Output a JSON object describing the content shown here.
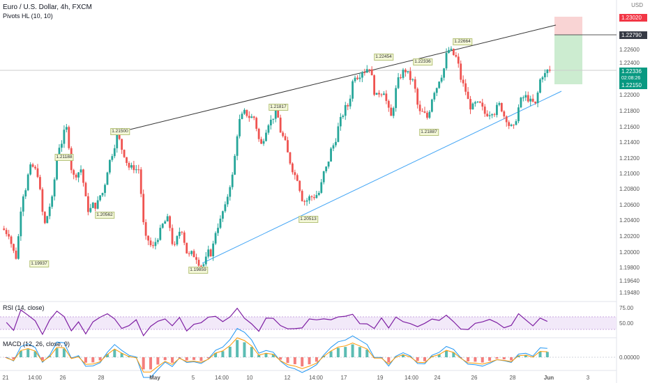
{
  "header": {
    "symbol_title": "Euro / U.S. Dollar, 4h, FXCM",
    "indicator_title": "Pivots HL (10, 10)"
  },
  "axis": {
    "currency": "USD",
    "price_ticks": [
      "1.22600",
      "1.22400",
      "1.22000",
      "1.21800",
      "1.21600",
      "1.21400",
      "1.21200",
      "1.21000",
      "1.20800",
      "1.20600",
      "1.20400",
      "1.20200",
      "1.20000",
      "1.19800",
      "1.19640",
      "1.19480"
    ],
    "time_ticks": [
      "21",
      "14:00",
      "26",
      "28",
      "May",
      "5",
      "14:00",
      "10",
      "12",
      "14:00",
      "17",
      "19",
      "14:00",
      "24",
      "26",
      "28",
      "Jun",
      "3"
    ]
  },
  "badges": {
    "stop_loss": "1.23020",
    "take_profit_line": "1.22790",
    "current_price": "1.22336",
    "countdown": "02:08:26",
    "entry": "1.22150"
  },
  "pivots": [
    "1.21188",
    "1.21500",
    "1.19937",
    "1.20562",
    "1.21817",
    "1.19859",
    "1.20513",
    "1.22454",
    "1.22336",
    "1.21887",
    "1.22664"
  ],
  "rsi": {
    "title": "RSI (14, close)",
    "levels": [
      "75.00",
      "50.00"
    ]
  },
  "macd": {
    "title": "MACD (12, 26, close, 9)",
    "value": "0.00000"
  },
  "colors": {
    "up": "#26a69a",
    "down": "#ef5350",
    "trend_upper": "#333333",
    "trend_lower": "#42a5f5",
    "rsi_line": "#7e1fa3",
    "macd_line": "#2196f3",
    "signal_line": "#ff9800"
  },
  "chart_data": {
    "type": "candlestick",
    "series": [
      {
        "name": "EURUSD",
        "close_path": [
          1.203,
          1.2,
          1.208,
          1.211,
          1.2105,
          1.204,
          1.207,
          1.214,
          1.216,
          1.21,
          1.211,
          1.206,
          1.2065,
          1.208,
          1.212,
          1.215,
          1.213,
          1.211,
          1.211,
          1.202,
          1.201,
          1.203,
          1.2045,
          1.201,
          1.2035,
          1.2,
          1.2,
          1.199,
          1.2005,
          1.204,
          1.206,
          1.21,
          1.217,
          1.218,
          1.2175,
          1.214,
          1.217,
          1.218,
          1.215,
          1.212,
          1.21,
          1.207,
          1.2075,
          1.208,
          1.211,
          1.214,
          1.217,
          1.219,
          1.223,
          1.2235,
          1.224,
          1.22,
          1.221,
          1.2175,
          1.222,
          1.2235,
          1.222,
          1.218,
          1.2175,
          1.221,
          1.223,
          1.226,
          1.225,
          1.2215,
          1.219,
          1.219,
          1.218,
          1.2185,
          1.219,
          1.2175,
          1.216,
          1.2195,
          1.22,
          1.219,
          1.223,
          1.2234
        ]
      }
    ]
  }
}
